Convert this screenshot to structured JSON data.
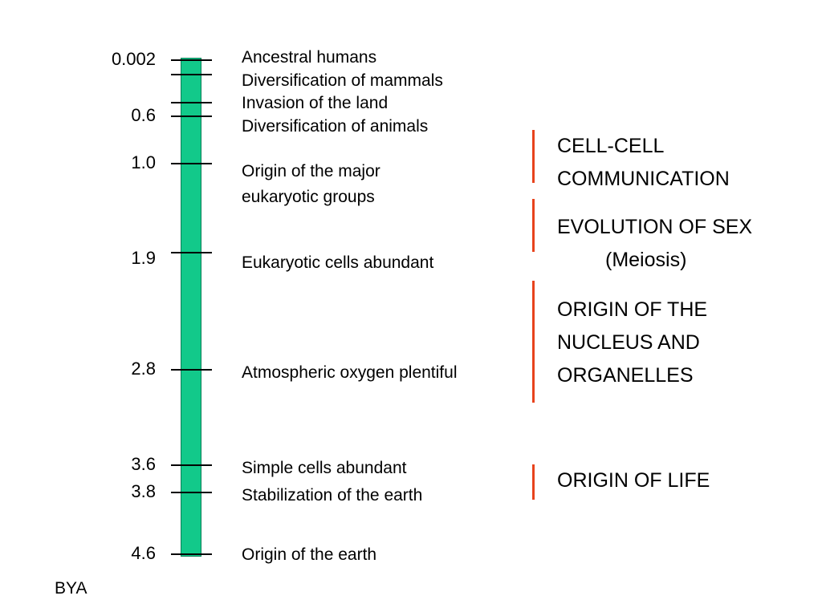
{
  "unit_label": "BYA",
  "ages": [
    "0.002",
    "0.6",
    "1.0",
    "1.9",
    "2.8",
    "3.6",
    "3.8",
    "4.6"
  ],
  "events": [
    "Ancestral humans",
    "Diversification of mammals",
    "Invasion of the land",
    "Diversification of animals",
    "Origin of the major eukaryotic groups",
    "Eukaryotic cells abundant",
    "Atmospheric oxygen plentiful",
    "Simple cells abundant",
    "Stabilization of the earth",
    "Origin of the earth"
  ],
  "processes": {
    "cell_communication": [
      "CELL-CELL",
      "COMMUNICATION"
    ],
    "sex": [
      "EVOLUTION OF SEX",
      "(Meiosis)"
    ],
    "nucleus": [
      "ORIGIN OF THE",
      "NUCLEUS AND",
      "ORGANELLES"
    ],
    "life": [
      "ORIGIN OF LIFE"
    ]
  },
  "colors": {
    "timeline_bar": "#12c98a",
    "bracket": "#e8431d"
  }
}
